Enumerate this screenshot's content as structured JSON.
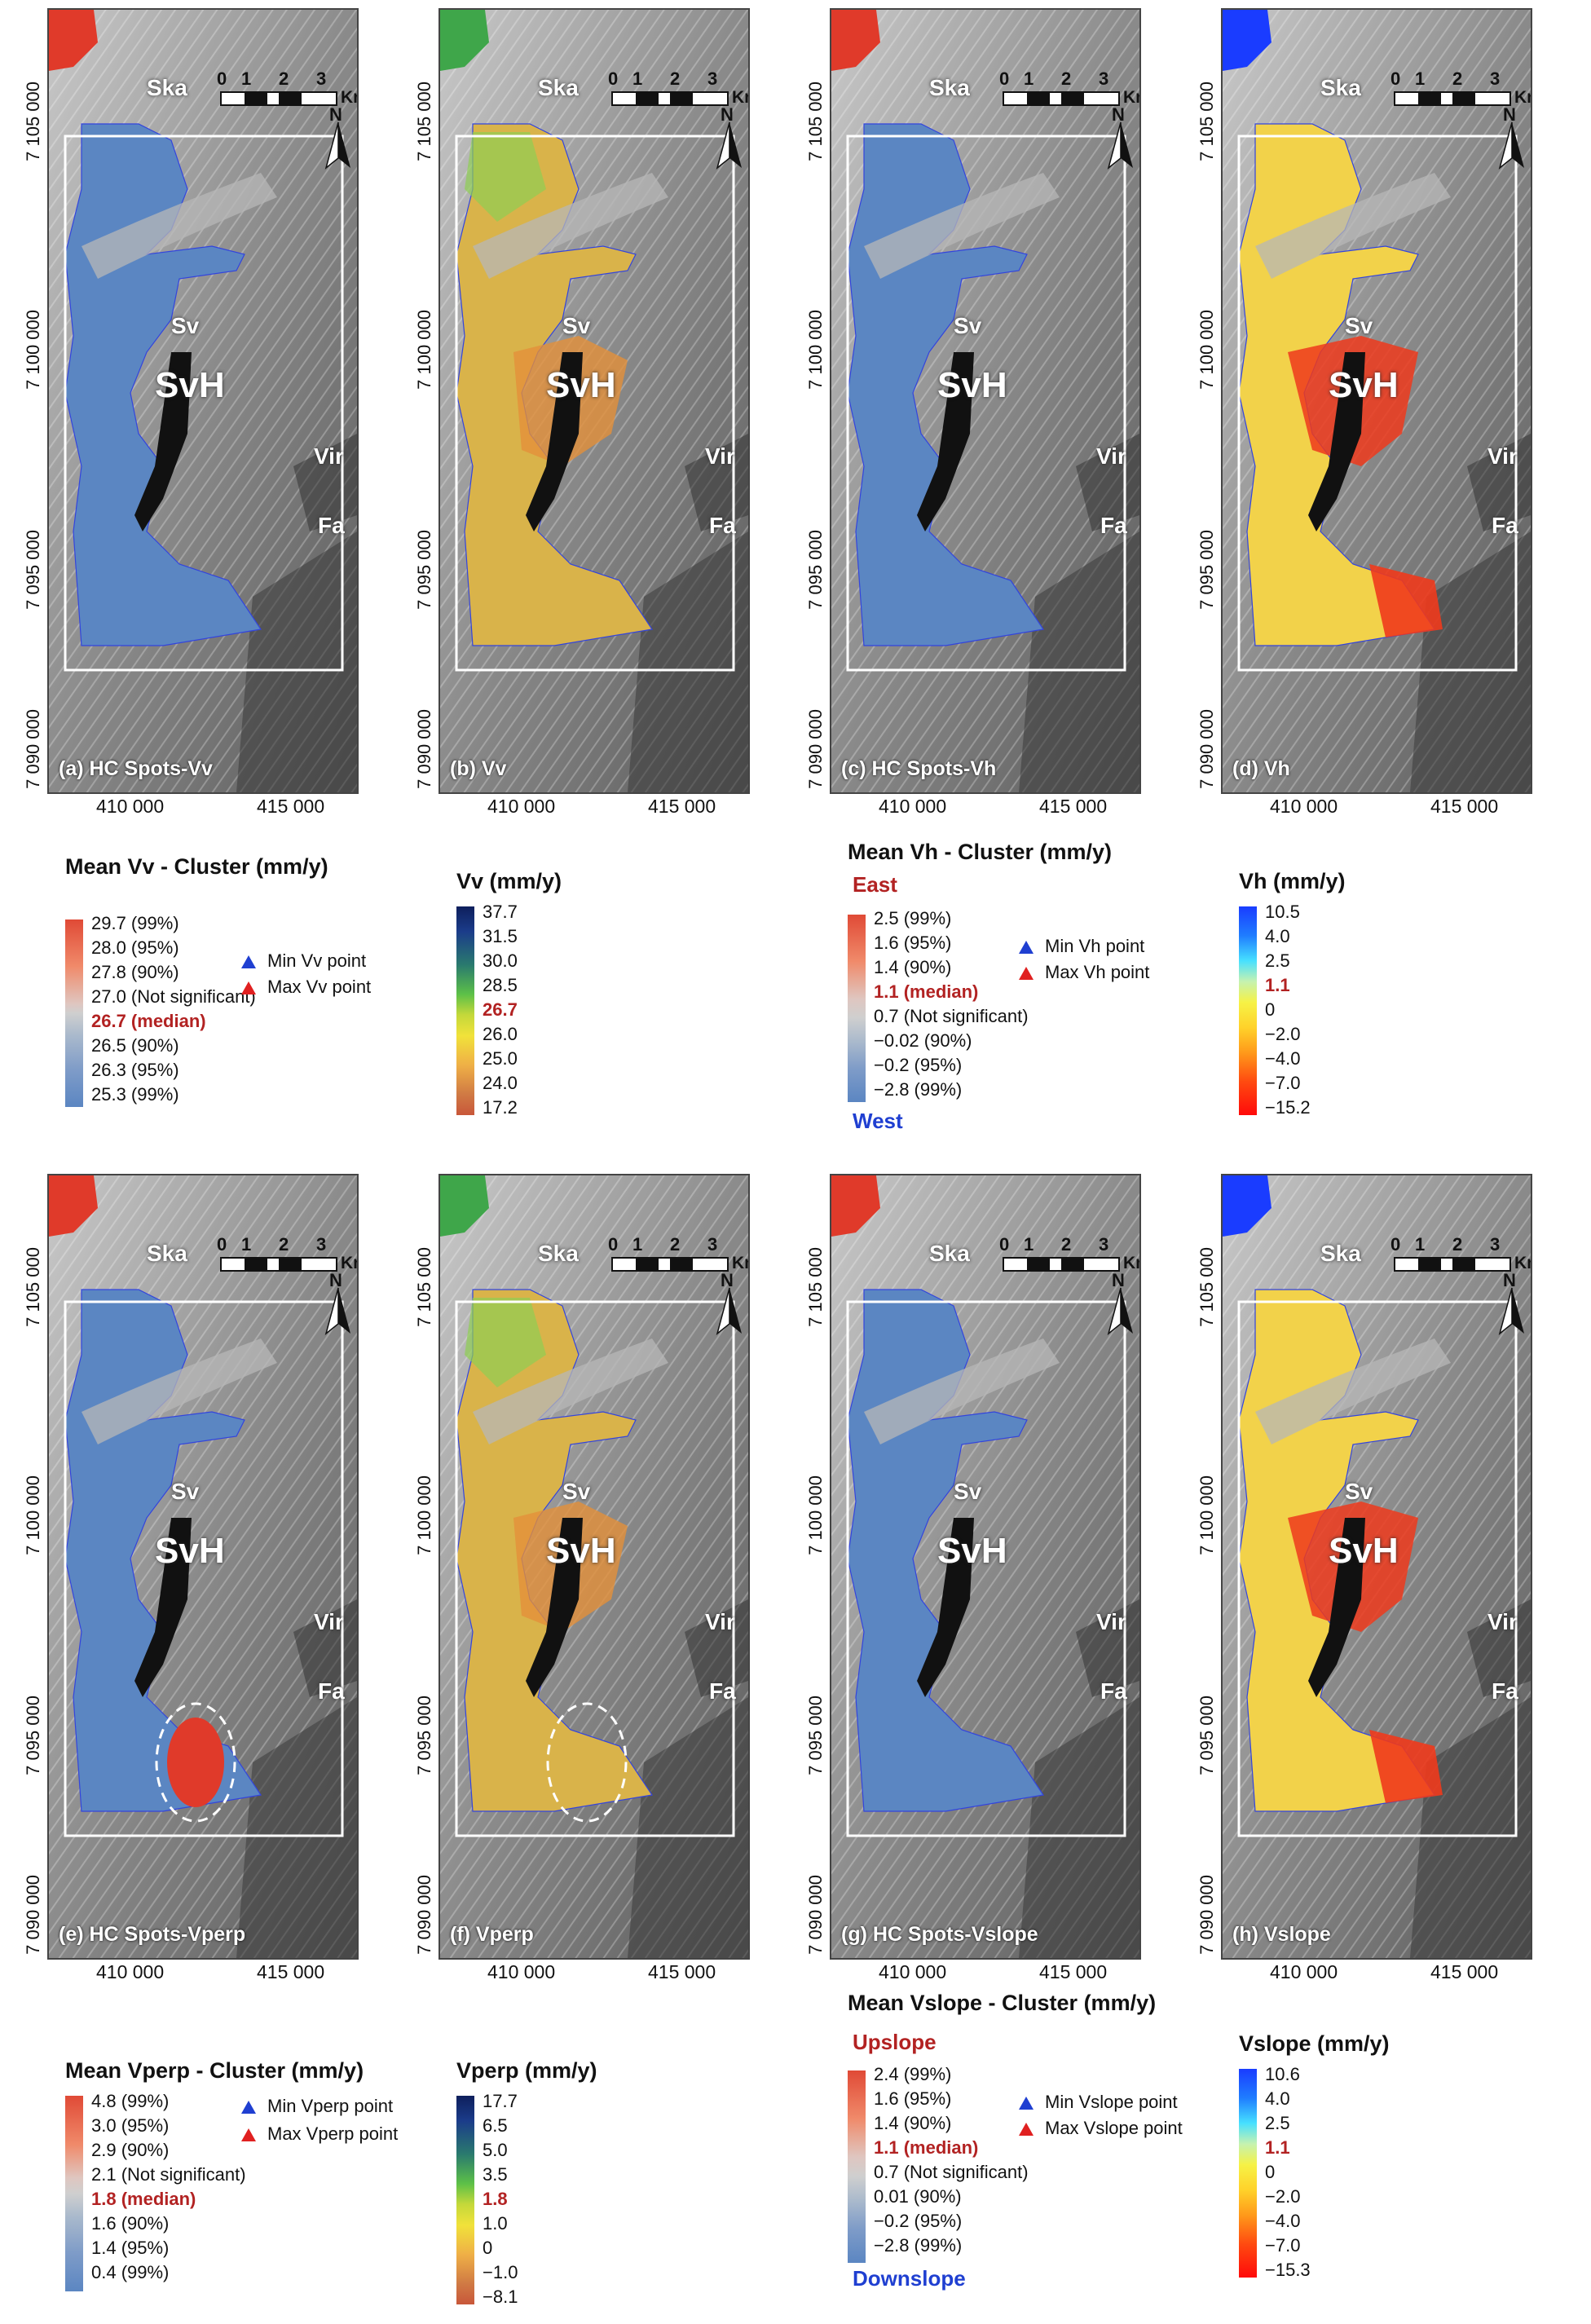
{
  "map": {
    "y_ticks": [
      "7 105 000",
      "7 100 000",
      "7 095 000",
      "7 090 000"
    ],
    "x_ticks": [
      "410 000",
      "415 000"
    ],
    "places": {
      "ska": "Ska",
      "sv": "Sv",
      "svh": "SvH",
      "vir": "Vir",
      "fa": "Fa"
    },
    "scale": {
      "n0": "0",
      "n1": "1",
      "n2": "2",
      "n3": "3",
      "unit": "Km"
    },
    "north": "N"
  },
  "panels": [
    {
      "label": "(a) HC Spots-Vv",
      "kind": "cluster",
      "tris": [],
      "ellipse": false
    },
    {
      "label": "(b) Vv",
      "kind": "velocity",
      "tris": [],
      "ellipse": false
    },
    {
      "label": "(c) HC Spots-Vh",
      "kind": "cluster",
      "tris": [],
      "ellipse": false
    },
    {
      "label": "(d) Vh",
      "kind": "velocity",
      "tris": [],
      "ellipse": false
    },
    {
      "label": "(e) HC Spots-Vperp",
      "kind": "cluster",
      "tris": [],
      "ellipse": true
    },
    {
      "label": "(f) Vperp",
      "kind": "velocity",
      "tris": [],
      "ellipse": true
    },
    {
      "label": "(g) HC Spots-Vslope",
      "kind": "cluster",
      "tris": [],
      "ellipse": false
    },
    {
      "label": "(h) Vslope",
      "kind": "velocity",
      "tris": [],
      "ellipse": false
    }
  ],
  "legends": {
    "vv_cluster": {
      "title": "Mean Vv - Cluster (mm/y)",
      "ticks": [
        "29.7 (99%)",
        "28.0 (95%)",
        "27.8 (90%)",
        "27.0 (Not significant)",
        "26.7 (median)",
        "26.5 (90%)",
        "26.3 (95%)",
        "25.3 (99%)"
      ],
      "min_point": "Min Vv point",
      "max_point": "Max Vv point"
    },
    "vv": {
      "title": "Vv (mm/y)",
      "ticks": [
        "37.7",
        "31.5",
        "30.0",
        "28.5",
        "26.7",
        "26.0",
        "25.0",
        "24.0",
        "17.2"
      ]
    },
    "vh_cluster": {
      "title": "Mean Vh - Cluster (mm/y)",
      "top_dir": "East",
      "bottom_dir": "West",
      "ticks": [
        "2.5 (99%)",
        "1.6 (95%)",
        "1.4 (90%)",
        "1.1 (median)",
        "0.7 (Not significant)",
        "−0.02 (90%)",
        "−0.2 (95%)",
        "−2.8 (99%)"
      ],
      "min_point": "Min Vh point",
      "max_point": "Max Vh point"
    },
    "vh": {
      "title": "Vh (mm/y)",
      "ticks": [
        "10.5",
        "4.0",
        "2.5",
        "1.1",
        "0",
        "−2.0",
        "−4.0",
        "−7.0",
        "−15.2"
      ]
    },
    "vperp_cluster": {
      "title": "Mean Vperp - Cluster (mm/y)",
      "ticks": [
        "4.8 (99%)",
        "3.0 (95%)",
        "2.9 (90%)",
        "2.1 (Not significant)",
        "1.8 (median)",
        "1.6 (90%)",
        "1.4 (95%)",
        "0.4 (99%)"
      ],
      "min_point": "Min Vperp point",
      "max_point": "Max Vperp point"
    },
    "vperp": {
      "title": "Vperp (mm/y)",
      "ticks": [
        "17.7",
        "6.5",
        "5.0",
        "3.5",
        "1.8",
        "1.0",
        "0",
        "−1.0",
        "−8.1"
      ]
    },
    "vslope_cluster": {
      "title": "Mean Vslope - Cluster (mm/y)",
      "top_dir": "Upslope",
      "bottom_dir": "Downslope",
      "ticks": [
        "2.4 (99%)",
        "1.6 (95%)",
        "1.4 (90%)",
        "1.1 (median)",
        "0.7 (Not significant)",
        "0.01 (90%)",
        "−0.2 (95%)",
        "−2.8 (99%)"
      ],
      "min_point": "Min Vslope point",
      "max_point": "Max Vslope point"
    },
    "vslope": {
      "title": "Vslope (mm/y)",
      "ticks": [
        "10.6",
        "4.0",
        "2.5",
        "1.1",
        "0",
        "−2.0",
        "−4.0",
        "−7.0",
        "−15.3"
      ]
    }
  },
  "colors": {
    "cluster_low": "#5b86c2",
    "cluster_high": "#e03a2a",
    "median_text": "#b22222",
    "east_up": "#b22222",
    "west_down": "#1f3fd1",
    "min_point": "#1f3fd1",
    "max_point": "#e02020"
  }
}
